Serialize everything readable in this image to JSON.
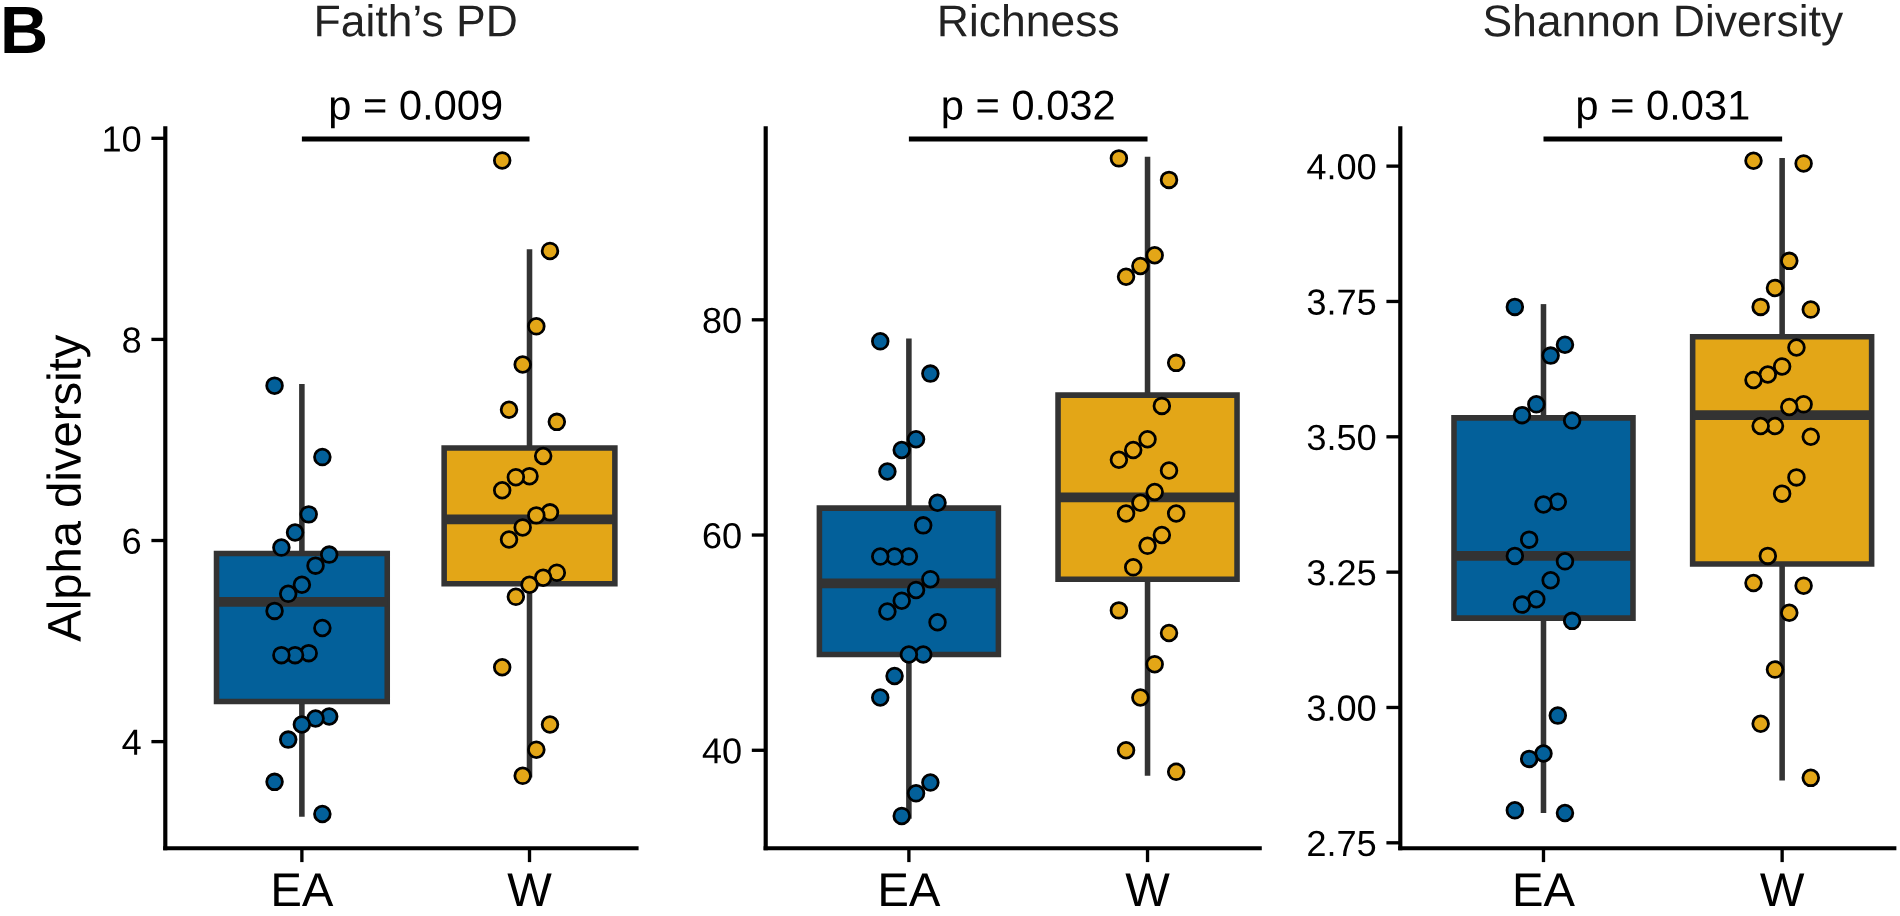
{
  "chart_data": [
    {
      "type": "box",
      "title": "Faith’s PD",
      "ylabel": "Alpha diversity",
      "annotations": [
        "B",
        "p = 0.009"
      ],
      "categories": [
        "EA",
        "W"
      ],
      "colors": [
        "#03609a",
        "#e3a617"
      ],
      "boxes": [
        {
          "low": 3.28,
          "q1": 4.4,
          "median": 5.39,
          "q3": 5.87,
          "high": 7.53
        },
        {
          "low": 3.67,
          "q1": 5.57,
          "median": 6.21,
          "q3": 6.92,
          "high": 8.87
        }
      ],
      "ylim": [
        2.94,
        10.1
      ],
      "yticks": [
        4,
        6,
        8,
        10
      ],
      "grid": false,
      "series": [
        {
          "type": "scatter",
          "color": "#03609a",
          "x": [
            "EA",
            "EA",
            "EA",
            "EA",
            "EA",
            "EA",
            "EA",
            "EA",
            "EA",
            "EA",
            "EA",
            "EA",
            "EA",
            "EA",
            "EA",
            "EA",
            "EA",
            "EA",
            "EA",
            "EA"
          ],
          "values": [
            7.54,
            6.83,
            6.26,
            6.08,
            5.93,
            5.86,
            5.75,
            5.56,
            5.47,
            5.3,
            5.13,
            4.88,
            4.86,
            4.86,
            4.25,
            4.23,
            4.17,
            4.02,
            3.6,
            3.28
          ]
        },
        {
          "type": "scatter",
          "color": "#e3a617",
          "x": [
            "W",
            "W",
            "W",
            "W",
            "W",
            "W",
            "W",
            "W",
            "W",
            "W",
            "W",
            "W",
            "W",
            "W",
            "W",
            "W",
            "W",
            "W",
            "W",
            "W",
            "W",
            "W"
          ],
          "values": [
            9.78,
            8.88,
            8.13,
            7.75,
            7.3,
            7.18,
            6.84,
            6.64,
            6.63,
            6.5,
            6.28,
            6.25,
            6.13,
            6.01,
            5.68,
            5.63,
            5.56,
            5.44,
            4.74,
            4.17,
            3.92,
            3.66
          ]
        }
      ]
    },
    {
      "type": "box",
      "title": "Richness",
      "annotations": [
        "p = 0.032"
      ],
      "categories": [
        "EA",
        "W"
      ],
      "colors": [
        "#03609a",
        "#e3a617"
      ],
      "boxes": [
        {
          "low": 33.9,
          "q1": 48.9,
          "median": 55.5,
          "q3": 62.5,
          "high": 78.0
        },
        {
          "low": 37.9,
          "q1": 55.9,
          "median": 63.5,
          "q3": 73.0,
          "high": 94.9
        }
      ],
      "ylim": [
        30.9,
        97.8
      ],
      "yticks": [
        40,
        60,
        80
      ],
      "grid": false,
      "series": [
        {
          "type": "scatter",
          "color": "#03609a",
          "x": [
            "EA",
            "EA",
            "EA",
            "EA",
            "EA",
            "EA",
            "EA",
            "EA",
            "EA",
            "EA",
            "EA",
            "EA",
            "EA",
            "EA",
            "EA",
            "EA",
            "EA",
            "EA",
            "EA",
            "EA",
            "EA",
            "EA"
          ],
          "values": [
            78.0,
            75.0,
            68.9,
            67.9,
            65.9,
            63.0,
            60.9,
            58.0,
            58.0,
            58.0,
            55.9,
            54.9,
            53.9,
            52.9,
            51.9,
            48.9,
            48.9,
            46.9,
            44.9,
            37.0,
            36.0,
            33.9
          ]
        },
        {
          "type": "scatter",
          "color": "#e3a617",
          "x": [
            "W",
            "W",
            "W",
            "W",
            "W",
            "W",
            "W",
            "W",
            "W",
            "W",
            "W",
            "W",
            "W",
            "W",
            "W",
            "W",
            "W",
            "W",
            "W",
            "W",
            "W",
            "W",
            "W",
            "W"
          ],
          "values": [
            95.0,
            93.0,
            86.0,
            85.0,
            84.0,
            76.0,
            72.0,
            68.9,
            67.9,
            67.0,
            66.0,
            64.0,
            63.0,
            62.0,
            62.0,
            60.0,
            59.0,
            57.0,
            53.0,
            50.9,
            48.0,
            44.9,
            40.0,
            38.0
          ]
        }
      ]
    },
    {
      "type": "box",
      "title": "Shannon Diversity",
      "annotations": [
        "p = 0.031"
      ],
      "categories": [
        "EA",
        "W"
      ],
      "colors": [
        "#03609a",
        "#e3a617"
      ],
      "boxes": [
        {
          "low": 2.81,
          "q1": 3.165,
          "median": 3.28,
          "q3": 3.535,
          "high": 3.74
        },
        {
          "low": 2.87,
          "q1": 3.265,
          "median": 3.54,
          "q3": 3.685,
          "high": 4.01
        }
      ],
      "ylim": [
        2.74,
        4.07
      ],
      "yticks": [
        {
          "value": 2.75,
          "label": "2.75"
        },
        {
          "value": 3,
          "label": "3.00"
        },
        {
          "value": 3.25,
          "label": "3.25"
        },
        {
          "value": 3.5,
          "label": "3.50"
        },
        {
          "value": 3.75,
          "label": "3.75"
        },
        {
          "value": 4,
          "label": "4.00"
        }
      ],
      "grid": false,
      "series": [
        {
          "type": "scatter",
          "color": "#03609a",
          "x": [
            "EA",
            "EA",
            "EA",
            "EA",
            "EA",
            "EA",
            "EA",
            "EA",
            "EA",
            "EA",
            "EA",
            "EA",
            "EA",
            "EA",
            "EA",
            "EA",
            "EA",
            "EA",
            "EA",
            "EA"
          ],
          "values": [
            3.74,
            3.67,
            3.65,
            3.56,
            3.54,
            3.53,
            3.38,
            3.375,
            3.31,
            3.28,
            3.27,
            3.235,
            3.2,
            3.19,
            3.16,
            2.985,
            2.915,
            2.905,
            2.81,
            2.805
          ]
        },
        {
          "type": "scatter",
          "color": "#e3a617",
          "x": [
            "W",
            "W",
            "W",
            "W",
            "W",
            "W",
            "W",
            "W",
            "W",
            "W",
            "W",
            "W",
            "W",
            "W",
            "W",
            "W",
            "W",
            "W",
            "W",
            "W",
            "W",
            "W",
            "W",
            "W"
          ],
          "values": [
            4.01,
            4.005,
            3.825,
            3.775,
            3.74,
            3.735,
            3.665,
            3.63,
            3.615,
            3.605,
            3.56,
            3.555,
            3.52,
            3.52,
            3.5,
            3.425,
            3.395,
            3.28,
            3.23,
            3.225,
            3.175,
            3.07,
            2.97,
            2.87
          ]
        }
      ]
    }
  ]
}
